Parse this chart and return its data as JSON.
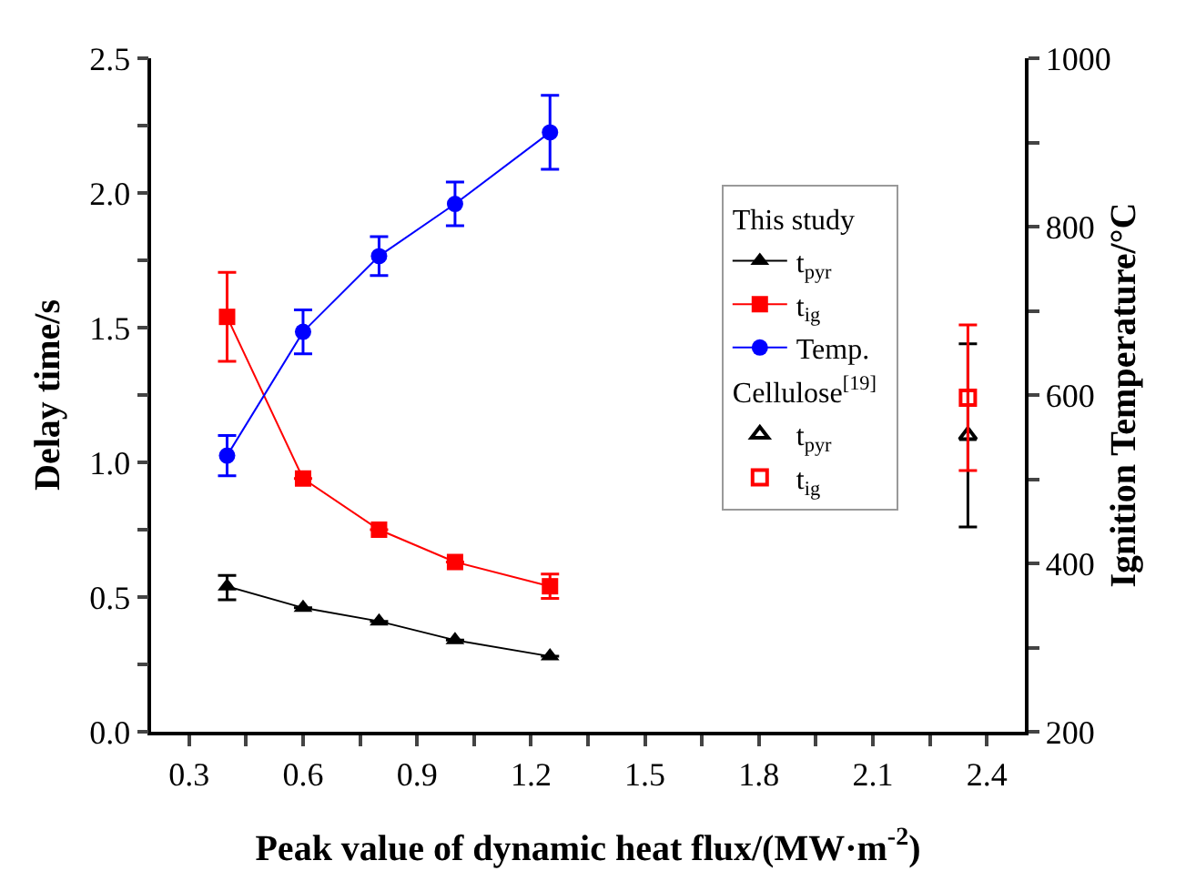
{
  "chart_data": {
    "type": "line",
    "xlabel": "Peak value of dynamic heat flux/(MW·m$^{-2}$)",
    "ylabel": "Delay time/s",
    "y2label": "Ignition Temperature/°C",
    "legend_title": [
      "This study",
      "Cellulose$^{[19]}$"
    ],
    "series": [
      {
        "name": "t$_{pyr}$",
        "marker": "triangle",
        "color": "#000000",
        "x": [
          0.4,
          0.6,
          0.8,
          1.0,
          1.25
        ],
        "values": [
          0.54,
          0.46,
          0.41,
          0.34,
          0.28
        ],
        "errors": [
          [
            0.49,
            0.58
          ],
          null,
          null,
          null,
          null
        ]
      },
      {
        "name": "t$_{ig}$",
        "marker": "square",
        "color": "#ff0000",
        "x": [
          0.4,
          0.6,
          0.8,
          1.0,
          1.25
        ],
        "values": [
          1.54,
          0.94,
          0.75,
          0.63,
          0.54
        ],
        "errors": [
          0.165,
          null,
          null,
          null,
          0.045
        ]
      },
      {
        "name": "Temp.",
        "marker": "circle",
        "color": "#0000ff",
        "axis": "y2",
        "x": [
          0.4,
          0.6,
          0.8,
          1.0,
          1.25
        ],
        "values": [
          528,
          675,
          765,
          827,
          912
        ],
        "errors": [
          24,
          26,
          23,
          26,
          44
        ]
      },
      {
        "name": "t$_{pyr}$",
        "type": "scatter",
        "marker": "triangle",
        "color": "#000000",
        "x": [
          2.35
        ],
        "values": [
          1.1
        ],
        "errors": [
          0.34
        ]
      },
      {
        "name": "t$_{ig}$",
        "type": "scatter",
        "marker": "square",
        "color": "#ff0000",
        "x": [
          2.35
        ],
        "values": [
          1.24
        ],
        "errors": [
          0.27
        ]
      }
    ],
    "xlim": [
      0.2,
      2.5
    ],
    "xticks": [
      {
        "value": 0.3,
        "label": "0.3"
      },
      {
        "value": 0.45,
        "label": null
      },
      {
        "value": 0.6,
        "label": "0.6"
      },
      {
        "value": 0.75,
        "label": null
      },
      {
        "value": 0.9,
        "label": "0.9"
      },
      {
        "value": 1.05,
        "label": null
      },
      {
        "value": 1.2,
        "label": "1.2"
      },
      {
        "value": 1.35,
        "label": null
      },
      {
        "value": 1.5,
        "label": "1.5"
      },
      {
        "value": 1.65,
        "label": null
      },
      {
        "value": 1.8,
        "label": "1.8"
      },
      {
        "value": 1.95,
        "label": null
      },
      {
        "value": 2.1,
        "label": "2.1"
      },
      {
        "value": 2.25,
        "label": null
      },
      {
        "value": 2.4,
        "label": "2.4"
      }
    ],
    "ylim": [
      0,
      2.5
    ],
    "yticks": [
      {
        "value": 0,
        "label": "0.0"
      },
      {
        "value": 0.25,
        "label": null
      },
      {
        "value": 0.5,
        "label": "0.5"
      },
      {
        "value": 0.75,
        "label": null
      },
      {
        "value": 1,
        "label": "1.0"
      },
      {
        "value": 1.25,
        "label": null
      },
      {
        "value": 1.5,
        "label": "1.5"
      },
      {
        "value": 1.75,
        "label": null
      },
      {
        "value": 2,
        "label": "2.0"
      },
      {
        "value": 2.25,
        "label": null
      },
      {
        "value": 2.5,
        "label": "2.5"
      }
    ],
    "y2lim": [
      200,
      1000
    ],
    "y2ticks": [
      200,
      {
        "value": 300,
        "label": null
      },
      400,
      {
        "value": 500,
        "label": null
      },
      600,
      {
        "value": 700,
        "label": null
      },
      800,
      {
        "value": 900,
        "label": null
      },
      1000
    ],
    "grid": false,
    "legend": "right"
  }
}
